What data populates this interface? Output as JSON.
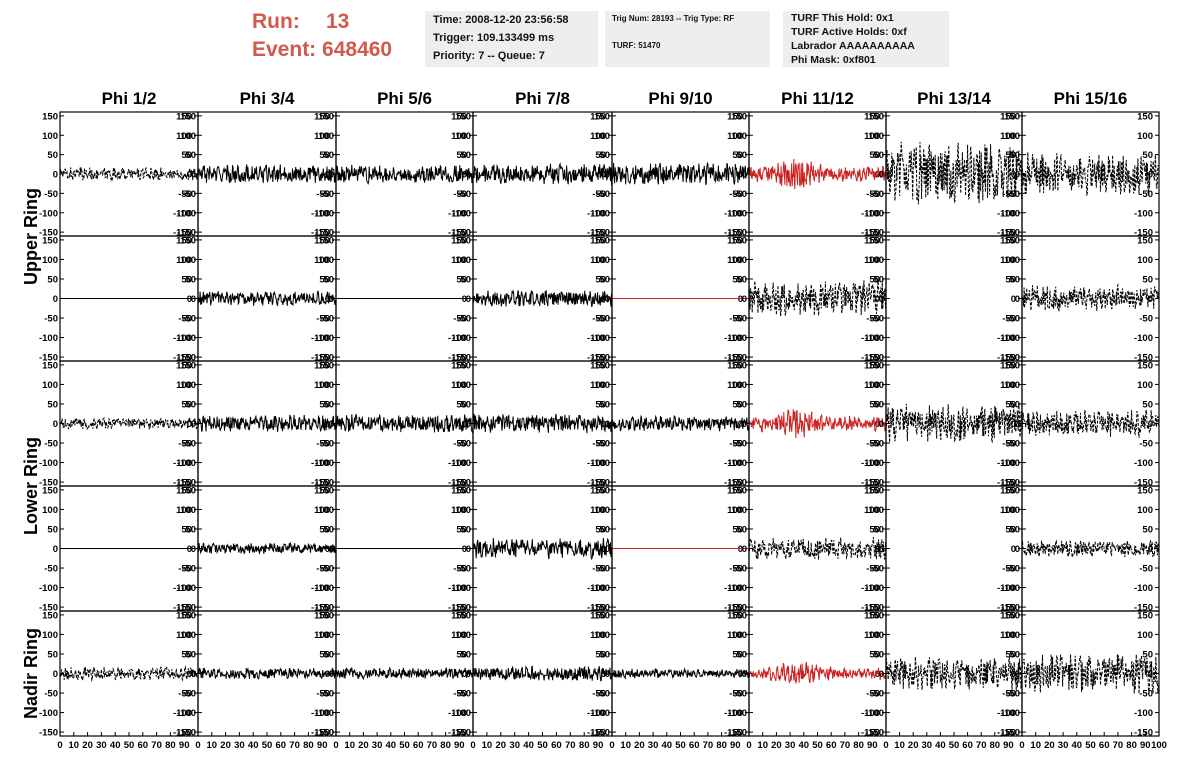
{
  "header": {
    "run_label": "Run:",
    "run_value": "13",
    "event_label": "Event:",
    "event_value": "648460",
    "time_box": [
      "Time: 2008-12-20 23:56:58",
      "Trigger: 109.133499 ms",
      "Priority: 7 -- Queue: 7"
    ],
    "trig_box": [
      "Trig Num: 28193 -- Trig Type: RF",
      "TURF: 51470"
    ],
    "turf_box": [
      "TURF This Hold: 0x1",
      "TURF Active Holds: 0xf",
      "Labrador AAAAAAAAAA",
      "Phi Mask: 0xf801"
    ]
  },
  "colors": {
    "accent_red": "#d05a4e",
    "trace_black": "#000000",
    "trace_red": "#cc2222",
    "box_bg": "#eeeeee"
  },
  "chart_data": {
    "type": "line",
    "columns": [
      "Phi 1/2",
      "Phi 3/4",
      "Phi 5/6",
      "Phi 7/8",
      "Phi 9/10",
      "Phi 11/12",
      "Phi 13/14",
      "Phi 15/16"
    ],
    "row_groups": [
      "Upper Ring",
      "Lower Ring",
      "Nadir Ring"
    ],
    "ylim": [
      -160,
      160
    ],
    "yticks": [
      -150,
      -100,
      -50,
      0,
      50,
      100,
      150
    ],
    "xlim": [
      0,
      100
    ],
    "xticks": [
      0,
      10,
      20,
      30,
      40,
      50,
      60,
      70,
      80,
      90,
      100
    ],
    "rows": [
      {
        "group": "Upper Ring",
        "traces": [
          {
            "amp": 14,
            "color": "black",
            "style": "dashed"
          },
          {
            "amp": 20,
            "color": "black",
            "style": "solid"
          },
          {
            "amp": 20,
            "color": "black",
            "style": "solid"
          },
          {
            "amp": 22,
            "color": "black",
            "style": "solid"
          },
          {
            "amp": 24,
            "color": "black",
            "style": "solid"
          },
          {
            "amp": 26,
            "color": "red",
            "style": "solid"
          },
          {
            "amp": 70,
            "color": "black",
            "style": "dashed"
          },
          {
            "amp": 45,
            "color": "black",
            "style": "dashed"
          }
        ]
      },
      {
        "group": "Upper Ring",
        "traces": [
          {
            "amp": 0,
            "color": "black",
            "style": "solid"
          },
          {
            "amp": 16,
            "color": "black",
            "style": "solid"
          },
          {
            "amp": 0,
            "color": "black",
            "style": "solid"
          },
          {
            "amp": 18,
            "color": "black",
            "style": "solid"
          },
          {
            "amp": 0,
            "color": "red",
            "style": "solid"
          },
          {
            "amp": 38,
            "color": "black",
            "style": "dashed"
          },
          null,
          {
            "amp": 28,
            "color": "black",
            "style": "dashed"
          }
        ]
      },
      {
        "group": "Lower Ring",
        "traces": [
          {
            "amp": 12,
            "color": "black",
            "style": "dashed"
          },
          {
            "amp": 18,
            "color": "black",
            "style": "solid"
          },
          {
            "amp": 20,
            "color": "black",
            "style": "solid"
          },
          {
            "amp": 20,
            "color": "black",
            "style": "solid"
          },
          {
            "amp": 16,
            "color": "black",
            "style": "solid"
          },
          {
            "amp": 24,
            "color": "red",
            "style": "solid"
          },
          {
            "amp": 42,
            "color": "black",
            "style": "dashed"
          },
          {
            "amp": 28,
            "color": "black",
            "style": "dashed"
          }
        ]
      },
      {
        "group": "Lower Ring",
        "traces": [
          {
            "amp": 0,
            "color": "black",
            "style": "solid"
          },
          {
            "amp": 12,
            "color": "black",
            "style": "solid"
          },
          {
            "amp": 0,
            "color": "black",
            "style": "solid"
          },
          {
            "amp": 22,
            "color": "black",
            "style": "solid"
          },
          {
            "amp": 0,
            "color": "red",
            "style": "solid"
          },
          {
            "amp": 24,
            "color": "black",
            "style": "dashed"
          },
          null,
          {
            "amp": 18,
            "color": "black",
            "style": "dashed"
          }
        ]
      },
      {
        "group": "Nadir Ring",
        "traces": [
          {
            "amp": 14,
            "color": "black",
            "style": "dashed"
          },
          {
            "amp": 12,
            "color": "black",
            "style": "solid"
          },
          {
            "amp": 12,
            "color": "black",
            "style": "solid"
          },
          {
            "amp": 16,
            "color": "black",
            "style": "solid"
          },
          {
            "amp": 10,
            "color": "black",
            "style": "solid"
          },
          {
            "amp": 20,
            "color": "red",
            "style": "solid"
          },
          {
            "amp": 36,
            "color": "black",
            "style": "dashed"
          },
          {
            "amp": 42,
            "color": "black",
            "style": "dashed"
          }
        ]
      }
    ]
  }
}
